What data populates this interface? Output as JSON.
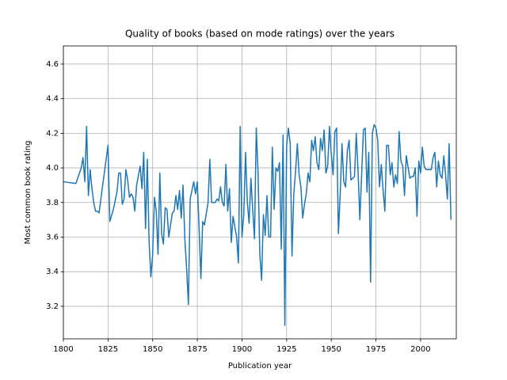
{
  "chart_data": {
    "type": "line",
    "title": "Quality of books (based on mode ratings) over the years",
    "xlabel": "Publication year",
    "ylabel": "Most common book rating",
    "color": "#1f77b4",
    "grid": true,
    "xlim": [
      1800,
      2020
    ],
    "ylim": [
      3.012,
      4.705
    ],
    "xticks": [
      1800,
      1825,
      1850,
      1875,
      1900,
      1925,
      1950,
      1975,
      2000
    ],
    "yticks": [
      3.2,
      3.4,
      3.6,
      3.8,
      {
        "value": 4,
        "label": "4.0"
      },
      4.2,
      4.4,
      4.6
    ],
    "x": [
      1800,
      1807,
      1810,
      1811,
      1812,
      1813,
      1814,
      1815,
      1816,
      1817,
      1818,
      1819,
      1820,
      1822,
      1825,
      1826,
      1828,
      1830,
      1831,
      1832,
      1833,
      1834,
      1835,
      1836,
      1837,
      1838,
      1839,
      1840,
      1841,
      1843,
      1844,
      1845,
      1846,
      1847,
      1848,
      1849,
      1850,
      1851,
      1852,
      1853,
      1854,
      1855,
      1856,
      1857,
      1858,
      1859,
      1861,
      1862,
      1863,
      1864,
      1865,
      1866,
      1867,
      1868,
      1869,
      1870,
      1871,
      1873,
      1874,
      1875,
      1876,
      1877,
      1878,
      1879,
      1881,
      1882,
      1883,
      1884,
      1885,
      1886,
      1887,
      1888,
      1889,
      1890,
      1891,
      1892,
      1893,
      1894,
      1895,
      1897,
      1898,
      1899,
      1900,
      1901,
      1902,
      1903,
      1904,
      1905,
      1906,
      1907,
      1908,
      1909,
      1910,
      1911,
      1912,
      1913,
      1914,
      1915,
      1916,
      1917,
      1918,
      1919,
      1920,
      1921,
      1922,
      1923,
      1924,
      1925,
      1926,
      1927,
      1928,
      1929,
      1930,
      1931,
      1932,
      1933,
      1934,
      1935,
      1936,
      1937,
      1938,
      1939,
      1940,
      1941,
      1942,
      1943,
      1944,
      1945,
      1946,
      1947,
      1948,
      1949,
      1950,
      1951,
      1952,
      1953,
      1954,
      1955,
      1956,
      1957,
      1958,
      1959,
      1960,
      1961,
      1962,
      1963,
      1964,
      1965,
      1966,
      1968,
      1969,
      1970,
      1971,
      1972,
      1973,
      1974,
      1975,
      1976,
      1977,
      1978,
      1979,
      1980,
      1981,
      1982,
      1983,
      1984,
      1985,
      1986,
      1987,
      1988,
      1989,
      1990,
      1991,
      1992,
      1994,
      1995,
      1996,
      1997,
      1998,
      1999,
      2000,
      2001,
      2002,
      2003,
      2006,
      2007,
      2008,
      2009,
      2010,
      2011,
      2012,
      2013,
      2014,
      2015,
      2016,
      2017
    ],
    "values": [
      3.92,
      3.91,
      4.0,
      4.06,
      3.92,
      4.24,
      3.84,
      3.99,
      3.88,
      3.8,
      3.75,
      3.75,
      3.74,
      3.9,
      4.13,
      3.69,
      3.76,
      3.86,
      3.97,
      3.97,
      3.79,
      3.82,
      3.99,
      3.93,
      3.83,
      3.85,
      3.83,
      3.75,
      3.9,
      4.01,
      3.88,
      4.09,
      3.65,
      4.05,
      3.57,
      3.37,
      3.5,
      3.83,
      3.75,
      3.5,
      3.97,
      3.62,
      3.56,
      3.77,
      3.76,
      3.6,
      3.74,
      3.75,
      3.84,
      3.76,
      3.87,
      3.71,
      3.9,
      3.59,
      3.42,
      3.21,
      3.82,
      3.92,
      3.85,
      3.92,
      3.65,
      3.36,
      3.69,
      3.67,
      3.8,
      4.05,
      3.8,
      3.8,
      3.8,
      3.82,
      3.81,
      3.89,
      3.8,
      3.78,
      4.02,
      3.75,
      3.88,
      3.57,
      3.72,
      3.6,
      3.45,
      4.24,
      3.6,
      3.73,
      4.09,
      3.8,
      3.68,
      3.94,
      3.76,
      3.59,
      4.23,
      3.97,
      3.5,
      3.35,
      3.73,
      3.61,
      3.84,
      3.6,
      3.6,
      4.12,
      3.76,
      4.0,
      3.98,
      4.03,
      3.53,
      4.19,
      3.09,
      4.13,
      4.23,
      4.14,
      3.49,
      3.85,
      3.98,
      4.14,
      3.96,
      3.89,
      3.71,
      3.79,
      3.85,
      3.97,
      3.92,
      4.16,
      4.1,
      4.18,
      4.03,
      3.99,
      4.17,
      4.1,
      4.22,
      3.97,
      4.01,
      4.24,
      4.08,
      3.96,
      4.21,
      4.23,
      3.62,
      3.85,
      4.14,
      3.92,
      3.89,
      4.1,
      4.16,
      3.93,
      3.94,
      3.95,
      4.2,
      3.98,
      3.7,
      4.22,
      4.23,
      3.86,
      4.09,
      3.34,
      4.2,
      4.25,
      4.23,
      4.16,
      3.89,
      4.02,
      3.87,
      3.75,
      4.13,
      4.13,
      3.96,
      4.03,
      3.89,
      3.96,
      3.91,
      4.21,
      4.04,
      4.01,
      3.84,
      4.07,
      3.94,
      3.95,
      3.95,
      4.0,
      3.72,
      4.04,
      3.97,
      4.12,
      4.01,
      3.99,
      3.99,
      4.06,
      4.09,
      3.89,
      4.04,
      3.96,
      3.94,
      4.07,
      3.96,
      3.82,
      4.14,
      3.7
    ]
  }
}
